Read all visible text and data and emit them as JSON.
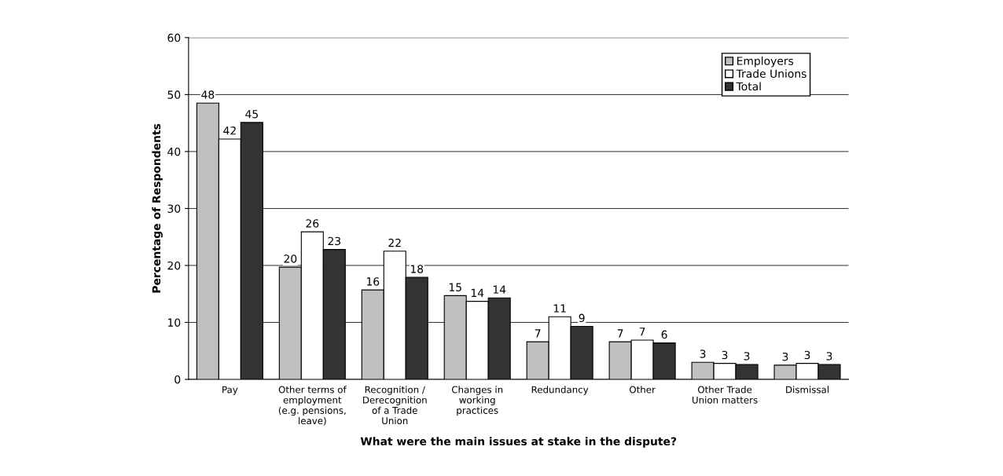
{
  "chart_data": {
    "type": "bar",
    "xlabel": "What were the main issues at stake in the dispute?",
    "ylabel": "Percentage of Respondents",
    "categories": [
      "Pay",
      "Other terms of\nemployment\n(e.g. pensions,\nleave)",
      "Recognition /\nDerecognition\nof a Trade\nUnion",
      "Changes in\nworking\npractices",
      "Redundancy",
      "Other",
      "Other Trade\nUnion matters",
      "Dismissal"
    ],
    "series": [
      {
        "name": "Employers",
        "color": "#c0c0c0",
        "values": [
          48.5,
          19.7,
          15.7,
          14.7,
          6.6,
          6.6,
          3.0,
          2.5
        ],
        "value_labels": [
          "48",
          "20",
          "16",
          "15",
          "7",
          "7",
          "3",
          "3"
        ]
      },
      {
        "name": "Trade Unions",
        "color": "#ffffff",
        "values": [
          42.2,
          25.9,
          22.5,
          13.7,
          11.0,
          6.9,
          2.8,
          2.8
        ],
        "value_labels": [
          "42",
          "26",
          "22",
          "14",
          "11",
          "7",
          "3",
          "3"
        ]
      },
      {
        "name": "Total",
        "color": "#333333",
        "values": [
          45.1,
          22.8,
          17.9,
          14.3,
          9.3,
          6.4,
          2.6,
          2.6
        ],
        "value_labels": [
          "45",
          "23",
          "18",
          "14",
          "9",
          "6",
          "3",
          "3"
        ]
      }
    ],
    "ylim": [
      0,
      60
    ],
    "yticks": [
      0,
      10,
      20,
      30,
      40,
      50,
      60
    ],
    "grid": "y",
    "legend": "top right"
  }
}
